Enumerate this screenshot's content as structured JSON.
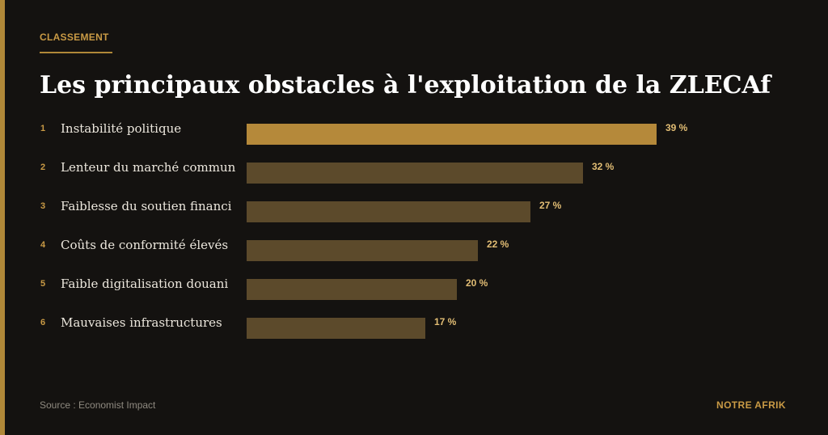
{
  "header": {
    "kicker": "CLASSEMENT",
    "title": "Les principaux obstacles à l'exploitation de la ZLECAf"
  },
  "chart_data": {
    "type": "bar",
    "orientation": "horizontal",
    "title": "Les principaux obstacles à l'exploitation de la ZLECAf",
    "xlabel": "",
    "ylabel": "",
    "xlim": [
      0,
      39
    ],
    "grid": false,
    "legend": "none",
    "ranks": [
      "1",
      "2",
      "3",
      "4",
      "5",
      "6"
    ],
    "categories": [
      "Instabilité politique",
      "Lenteur du marché commun",
      "Faiblesse du soutien financi",
      "Coûts de conformité élevés",
      "Faible digitalisation douani",
      "Mauvaises infrastructures"
    ],
    "values": [
      39,
      32,
      27,
      22,
      20,
      17
    ],
    "value_labels": [
      "39 %",
      "32 %",
      "27 %",
      "22 %",
      "20 %",
      "17 %"
    ],
    "colors": {
      "highlight": "#b5893a",
      "bar": "#5c4a2b",
      "rank": "#c99a45",
      "label": "#ece7dd",
      "value": "#e2bd74"
    }
  },
  "footer": {
    "source": "Source : Economist Impact",
    "brand": "NOTRE AFRIK"
  }
}
